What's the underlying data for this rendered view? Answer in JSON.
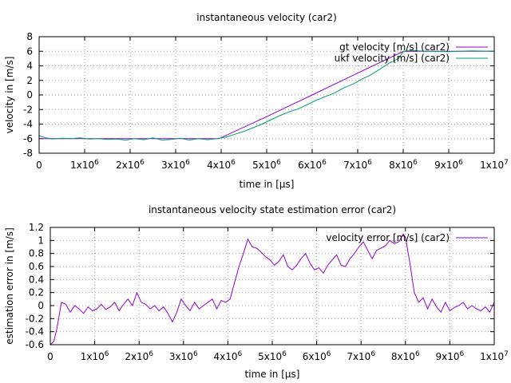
{
  "chart_data": [
    {
      "type": "line",
      "title": "instantaneous velocity (car2)",
      "xlabel": "time in [µs]",
      "ylabel": "velocity in [m/s]",
      "xlim": [
        0,
        10000000
      ],
      "ylim": [
        -8,
        8
      ],
      "yticks": [
        "8",
        "6",
        "4",
        "2",
        "0",
        "-2",
        "-4",
        "-6",
        "-8"
      ],
      "xtick_mantissas": [
        "0",
        "1x10",
        "2x10",
        "3x10",
        "4x10",
        "5x10",
        "6x10",
        "7x10",
        "8x10",
        "9x10",
        "1x10"
      ],
      "xtick_exponents": [
        "",
        "6",
        "6",
        "6",
        "6",
        "6",
        "6",
        "6",
        "6",
        "6",
        "7"
      ],
      "grid": true,
      "legend_position": "top-right",
      "series": [
        {
          "name": "gt velocity [m/s] (car2)",
          "color": "#9400d3",
          "x": [
            0,
            500000,
            1000000,
            1500000,
            2000000,
            2500000,
            3000000,
            3500000,
            3950000,
            5000000,
            6000000,
            7000000,
            8000000,
            8300000,
            9000000,
            10000000
          ],
          "y": [
            -6.0,
            -6.0,
            -6.0,
            -6.0,
            -6.0,
            -6.0,
            -6.0,
            -6.0,
            -6.0,
            -2.98,
            0.0,
            3.0,
            5.98,
            6.0,
            6.0,
            6.0
          ]
        },
        {
          "name": "ukf velocity [m/s] (car2)",
          "color": "#009e73",
          "x": [
            0,
            150000,
            300000,
            500000,
            700000,
            900000,
            1100000,
            1300000,
            1500000,
            1700000,
            1900000,
            2100000,
            2300000,
            2500000,
            2700000,
            2900000,
            3100000,
            3300000,
            3500000,
            3700000,
            3900000,
            4100000,
            4300000,
            4500000,
            4700000,
            4900000,
            5100000,
            5300000,
            5500000,
            5700000,
            5900000,
            6100000,
            6300000,
            6500000,
            6700000,
            6900000,
            7100000,
            7300000,
            7500000,
            7700000,
            7900000,
            8000000,
            8200000,
            8500000,
            9000000,
            9500000,
            10000000
          ],
          "y": [
            -5.6,
            -5.9,
            -6.05,
            -5.95,
            -6.0,
            -5.9,
            -6.05,
            -6.0,
            -6.1,
            -6.05,
            -6.2,
            -6.0,
            -6.15,
            -5.9,
            -6.2,
            -6.1,
            -5.95,
            -6.2,
            -6.0,
            -6.15,
            -6.0,
            -5.8,
            -5.4,
            -5.0,
            -4.5,
            -4.0,
            -3.4,
            -2.8,
            -2.3,
            -1.9,
            -1.3,
            -0.7,
            -0.2,
            0.3,
            1.0,
            1.5,
            2.2,
            2.8,
            3.6,
            4.4,
            5.0,
            6.0,
            6.1,
            6.0,
            5.95,
            6.05,
            6.0
          ]
        }
      ]
    },
    {
      "type": "line",
      "title": "instantaneous velocity state estimation error (car2)",
      "xlabel": "time in [µs]",
      "ylabel": "estimation error in [m/s]",
      "xlim": [
        0,
        10000000
      ],
      "ylim": [
        -0.6,
        1.2
      ],
      "yticks": [
        "1.2",
        "1",
        "0.8",
        "0.6",
        "0.4",
        "0.2",
        "0",
        "-0.2",
        "-0.4",
        "-0.6"
      ],
      "xtick_mantissas": [
        "0",
        "1x10",
        "2x10",
        "3x10",
        "4x10",
        "5x10",
        "6x10",
        "7x10",
        "8x10",
        "9x10",
        "1x10"
      ],
      "xtick_exponents": [
        "",
        "6",
        "6",
        "6",
        "6",
        "6",
        "6",
        "6",
        "6",
        "6",
        "7"
      ],
      "grid": true,
      "legend_position": "top-right",
      "series": [
        {
          "name": "velocity error [m/s] (car2)",
          "color": "#9400d3",
          "x": [
            0,
            80000,
            150000,
            250000,
            350000,
            450000,
            550000,
            650000,
            750000,
            850000,
            950000,
            1050000,
            1150000,
            1250000,
            1350000,
            1450000,
            1550000,
            1650000,
            1750000,
            1850000,
            1950000,
            2050000,
            2150000,
            2250000,
            2350000,
            2450000,
            2550000,
            2650000,
            2750000,
            2850000,
            2950000,
            3050000,
            3150000,
            3250000,
            3350000,
            3450000,
            3550000,
            3650000,
            3750000,
            3850000,
            3950000,
            4050000,
            4150000,
            4250000,
            4350000,
            4450000,
            4550000,
            4650000,
            4750000,
            4850000,
            4950000,
            5050000,
            5150000,
            5250000,
            5350000,
            5450000,
            5550000,
            5650000,
            5750000,
            5850000,
            5950000,
            6050000,
            6150000,
            6250000,
            6350000,
            6450000,
            6550000,
            6650000,
            6750000,
            6850000,
            6950000,
            7050000,
            7150000,
            7250000,
            7350000,
            7450000,
            7550000,
            7650000,
            7750000,
            7850000,
            7950000,
            8000000,
            8100000,
            8200000,
            8300000,
            8400000,
            8500000,
            8600000,
            8700000,
            8800000,
            8900000,
            9000000,
            9100000,
            9200000,
            9300000,
            9400000,
            9500000,
            9600000,
            9700000,
            9800000,
            9900000,
            10000000
          ],
          "y": [
            -0.6,
            -0.55,
            -0.35,
            0.05,
            0.02,
            -0.1,
            0.0,
            -0.05,
            -0.12,
            -0.02,
            -0.08,
            -0.05,
            0.02,
            -0.06,
            -0.02,
            0.05,
            -0.08,
            0.02,
            0.1,
            0.0,
            0.2,
            0.05,
            0.02,
            -0.05,
            0.0,
            -0.08,
            -0.02,
            -0.12,
            -0.25,
            -0.1,
            0.1,
            0.0,
            -0.08,
            0.05,
            -0.05,
            0.0,
            0.05,
            0.1,
            -0.05,
            0.08,
            0.05,
            0.1,
            0.35,
            0.6,
            0.8,
            1.02,
            0.9,
            0.88,
            0.82,
            0.75,
            0.7,
            0.62,
            0.68,
            0.78,
            0.6,
            0.55,
            0.62,
            0.72,
            0.8,
            0.65,
            0.55,
            0.58,
            0.5,
            0.62,
            0.7,
            0.78,
            0.62,
            0.6,
            0.72,
            0.8,
            0.9,
            0.98,
            0.85,
            0.72,
            0.85,
            0.88,
            0.92,
            1.0,
            0.95,
            0.98,
            1.1,
            1.05,
            0.65,
            0.2,
            0.05,
            0.12,
            -0.05,
            0.1,
            -0.02,
            -0.1,
            0.05,
            -0.08,
            -0.03,
            0.0,
            0.05,
            -0.05,
            0.0,
            -0.05,
            -0.08,
            -0.02,
            -0.1,
            0.05
          ]
        }
      ]
    }
  ]
}
